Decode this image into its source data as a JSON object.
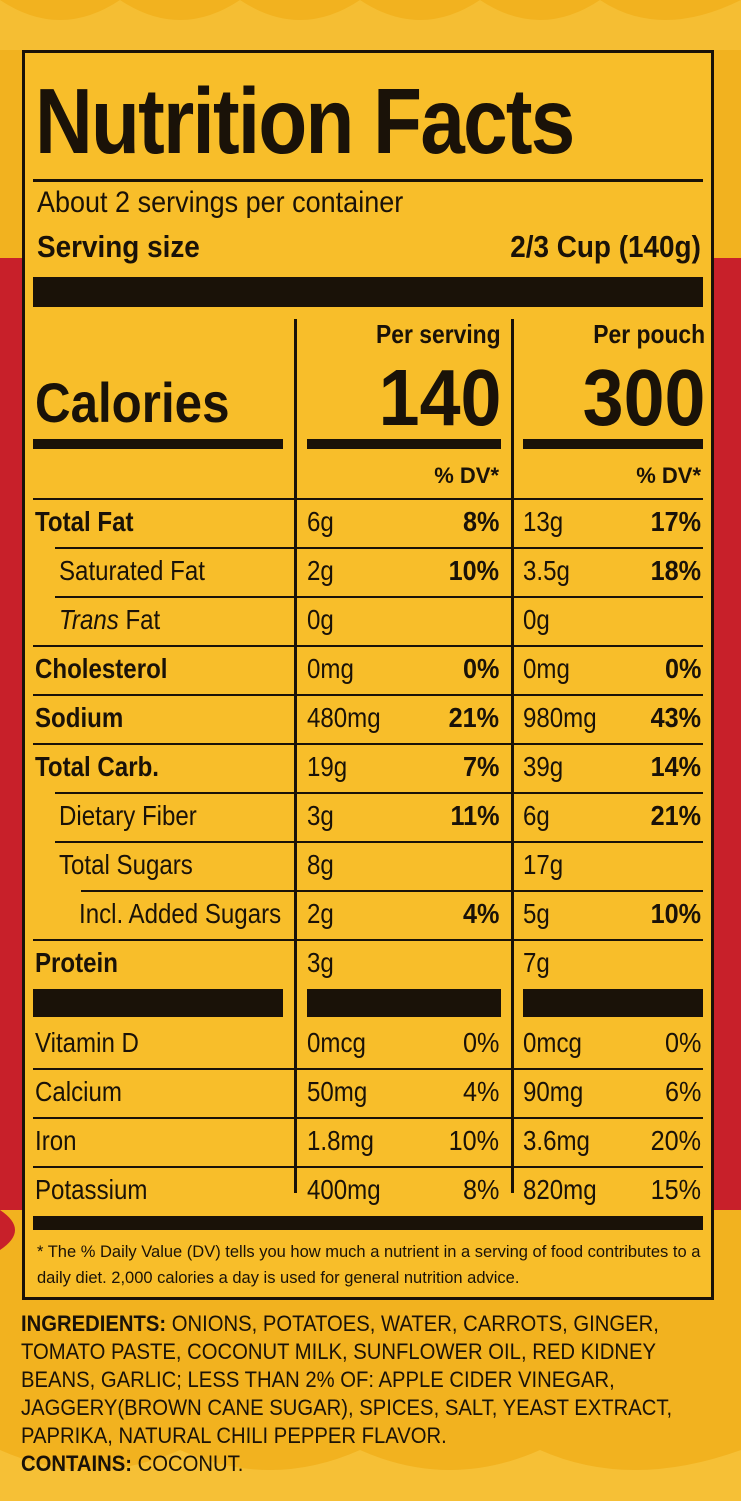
{
  "colors": {
    "background": "#f2b21f",
    "label": "#f8be2a",
    "ink": "#1a1208",
    "accent_red": "#c8202a"
  },
  "label": {
    "title": "Nutrition Facts",
    "servings_per_container": "About 2 servings per container",
    "serving_size_label": "Serving size",
    "serving_size_value": "2/3 Cup (140g)",
    "col_serving": "Per serving",
    "col_pouch": "Per pouch",
    "calories_label": "Calories",
    "calories_serving": "140",
    "calories_pouch": "300",
    "dv_header": "% DV*",
    "nutrients": [
      {
        "name": "Total Fat",
        "serving_amt": "6g",
        "serving_dv": "8%",
        "pouch_amt": "13g",
        "pouch_dv": "17%"
      },
      {
        "name": "Saturated Fat",
        "serving_amt": "2g",
        "serving_dv": "10%",
        "pouch_amt": "3.5g",
        "pouch_dv": "18%"
      },
      {
        "name_italic": "Trans",
        "name": " Fat",
        "serving_amt": "0g",
        "serving_dv": "",
        "pouch_amt": "0g",
        "pouch_dv": ""
      },
      {
        "name": "Cholesterol",
        "serving_amt": "0mg",
        "serving_dv": "0%",
        "pouch_amt": "0mg",
        "pouch_dv": "0%"
      },
      {
        "name": "Sodium",
        "serving_amt": "480mg",
        "serving_dv": "21%",
        "pouch_amt": "980mg",
        "pouch_dv": "43%"
      },
      {
        "name": "Total Carb.",
        "serving_amt": "19g",
        "serving_dv": "7%",
        "pouch_amt": "39g",
        "pouch_dv": "14%"
      },
      {
        "name": "Dietary Fiber",
        "serving_amt": "3g",
        "serving_dv": "11%",
        "pouch_amt": "6g",
        "pouch_dv": "21%"
      },
      {
        "name": "Total Sugars",
        "serving_amt": "8g",
        "serving_dv": "",
        "pouch_amt": "17g",
        "pouch_dv": ""
      },
      {
        "name": "Incl. Added Sugars",
        "serving_amt": "2g",
        "serving_dv": "4%",
        "pouch_amt": "5g",
        "pouch_dv": "10%"
      },
      {
        "name": "Protein",
        "serving_amt": "3g",
        "serving_dv": "",
        "pouch_amt": "7g",
        "pouch_dv": ""
      }
    ],
    "vitamins": [
      {
        "name": "Vitamin D",
        "serving_amt": "0mcg",
        "serving_dv": "0%",
        "pouch_amt": "0mcg",
        "pouch_dv": "0%"
      },
      {
        "name": "Calcium",
        "serving_amt": "50mg",
        "serving_dv": "4%",
        "pouch_amt": "90mg",
        "pouch_dv": "6%"
      },
      {
        "name": "Iron",
        "serving_amt": "1.8mg",
        "serving_dv": "10%",
        "pouch_amt": "3.6mg",
        "pouch_dv": "20%"
      },
      {
        "name": "Potassium",
        "serving_amt": "400mg",
        "serving_dv": "8%",
        "pouch_amt": "820mg",
        "pouch_dv": "15%"
      }
    ],
    "footnote": "* The % Daily Value (DV) tells you how much a nutrient in a serving of food contributes to a daily diet. 2,000 calories a day is used for general nutrition advice."
  },
  "ingredients": {
    "heading": "INGREDIENTS:",
    "text": " ONIONS, POTATOES, WATER, CARROTS, GINGER, TOMATO PASTE, COCONUT MILK, SUNFLOWER OIL, RED KIDNEY BEANS, GARLIC; LESS THAN 2% OF: APPLE CIDER VINEGAR, JAGGERY(BROWN CANE SUGAR), SPICES, SALT, YEAST EXTRACT, PAPRIKA, NATURAL CHILI PEPPER FLAVOR.",
    "contains_heading": "CONTAINS:",
    "contains_text": " COCONUT."
  }
}
